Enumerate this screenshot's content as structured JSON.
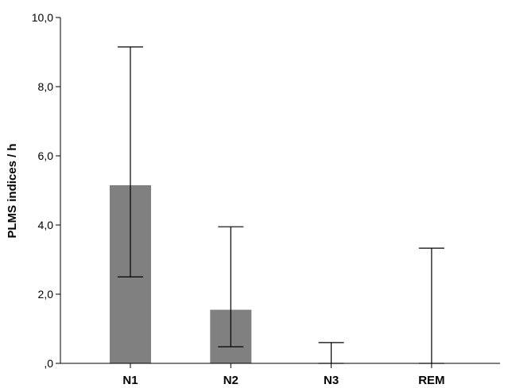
{
  "chart_data": {
    "type": "bar",
    "title": "",
    "xlabel": "",
    "ylabel": "PLMS indices / h",
    "categories": [
      "N1",
      "N2",
      "N3",
      "REM"
    ],
    "values": [
      5.15,
      1.55,
      0.0,
      0.0
    ],
    "error_low": [
      2.5,
      0.48,
      0.0,
      0.0
    ],
    "error_high": [
      9.15,
      3.95,
      0.6,
      3.33
    ],
    "ylim": [
      0,
      10
    ],
    "yticks": [
      0,
      2,
      4,
      6,
      8,
      10
    ],
    "ytick_labels": [
      ",0",
      "2,0",
      "4,0",
      "6,0",
      "8,0",
      "10,0"
    ],
    "grid": false,
    "legend": "none",
    "bar_color": "#808080",
    "line_color": "#000000"
  }
}
